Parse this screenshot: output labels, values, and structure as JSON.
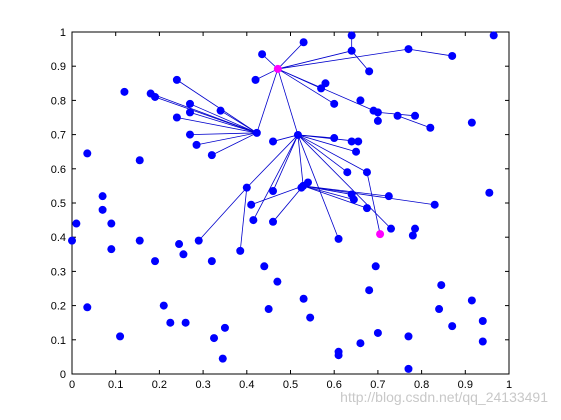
{
  "chart_data": {
    "type": "scatter",
    "xlim": [
      0,
      1
    ],
    "ylim": [
      0,
      1
    ],
    "xticks": [
      0,
      0.1,
      0.2,
      0.3,
      0.4,
      0.5,
      0.6,
      0.7,
      0.8,
      0.9,
      1
    ],
    "yticks": [
      0,
      0.1,
      0.2,
      0.3,
      0.4,
      0.5,
      0.6,
      0.7,
      0.8,
      0.9,
      1
    ],
    "edge_color": "#0000cc",
    "series": [
      {
        "color": "#0000ff",
        "x": [
          0.0,
          0.01,
          0.035,
          0.035,
          0.07,
          0.07,
          0.09,
          0.09,
          0.11,
          0.12,
          0.155,
          0.155,
          0.18,
          0.19,
          0.19,
          0.21,
          0.225,
          0.24,
          0.24,
          0.245,
          0.255,
          0.26,
          0.27,
          0.27,
          0.27,
          0.285,
          0.29,
          0.32,
          0.32,
          0.325,
          0.34,
          0.345,
          0.35,
          0.385,
          0.4,
          0.41,
          0.415,
          0.42,
          0.435,
          0.44,
          0.45,
          0.46,
          0.46,
          0.46,
          0.47,
          0.525,
          0.53,
          0.53,
          0.54,
          0.545,
          0.57,
          0.58,
          0.6,
          0.6,
          0.61,
          0.61,
          0.61,
          0.63,
          0.64,
          0.64,
          0.64,
          0.64,
          0.645,
          0.65,
          0.655,
          0.66,
          0.66,
          0.675,
          0.675,
          0.68,
          0.68,
          0.69,
          0.695,
          0.7,
          0.7,
          0.7,
          0.725,
          0.73,
          0.745,
          0.77,
          0.77,
          0.77,
          0.78,
          0.785,
          0.785,
          0.82,
          0.83,
          0.84,
          0.845,
          0.87,
          0.87,
          0.915,
          0.915,
          0.94,
          0.94,
          0.955,
          0.965,
          0.423,
          0.517,
          0.529
        ],
        "y": [
          0.39,
          0.44,
          0.645,
          0.195,
          0.52,
          0.48,
          0.44,
          0.365,
          0.11,
          0.825,
          0.625,
          0.39,
          0.82,
          0.81,
          0.33,
          0.2,
          0.15,
          0.75,
          0.86,
          0.38,
          0.35,
          0.15,
          0.765,
          0.79,
          0.7,
          0.67,
          0.39,
          0.64,
          0.33,
          0.105,
          0.77,
          0.045,
          0.135,
          0.36,
          0.545,
          0.495,
          0.45,
          0.86,
          0.935,
          0.315,
          0.19,
          0.535,
          0.68,
          0.445,
          0.27,
          0.545,
          0.97,
          0.22,
          0.56,
          0.165,
          0.835,
          0.85,
          0.69,
          0.79,
          0.395,
          0.065,
          0.055,
          0.59,
          0.525,
          0.99,
          0.945,
          0.68,
          0.51,
          0.65,
          0.68,
          0.8,
          0.09,
          0.59,
          0.485,
          0.245,
          0.885,
          0.77,
          0.315,
          0.74,
          0.765,
          0.12,
          0.52,
          0.425,
          0.755,
          0.95,
          0.11,
          0.015,
          0.405,
          0.425,
          0.755,
          0.72,
          0.495,
          0.19,
          0.26,
          0.93,
          0.14,
          0.735,
          0.215,
          0.095,
          0.155,
          0.53,
          0.99,
          0.705,
          0.699,
          0.55
        ]
      },
      {
        "color": "#ff00ff",
        "x": [
          0.471,
          0.705
        ],
        "y": [
          0.892,
          0.409
        ]
      }
    ],
    "edges": [
      [
        [
          0.471,
          0.892
        ],
        [
          0.423,
          0.705
        ]
      ],
      [
        [
          0.471,
          0.892
        ],
        [
          0.517,
          0.699
        ]
      ],
      [
        [
          0.471,
          0.892
        ],
        [
          0.435,
          0.935
        ]
      ],
      [
        [
          0.471,
          0.892
        ],
        [
          0.42,
          0.86
        ]
      ],
      [
        [
          0.471,
          0.892
        ],
        [
          0.53,
          0.97
        ]
      ],
      [
        [
          0.471,
          0.892
        ],
        [
          0.64,
          0.945
        ]
      ],
      [
        [
          0.471,
          0.892
        ],
        [
          0.77,
          0.95
        ]
      ],
      [
        [
          0.471,
          0.892
        ],
        [
          0.57,
          0.835
        ]
      ],
      [
        [
          0.471,
          0.892
        ],
        [
          0.6,
          0.79
        ]
      ],
      [
        [
          0.471,
          0.892
        ],
        [
          0.7,
          0.765
        ]
      ],
      [
        [
          0.77,
          0.95
        ],
        [
          0.87,
          0.93
        ]
      ],
      [
        [
          0.64,
          0.945
        ],
        [
          0.64,
          0.99
        ]
      ],
      [
        [
          0.64,
          0.945
        ],
        [
          0.68,
          0.885
        ]
      ],
      [
        [
          0.7,
          0.765
        ],
        [
          0.785,
          0.755
        ]
      ],
      [
        [
          0.745,
          0.755
        ],
        [
          0.82,
          0.72
        ]
      ],
      [
        [
          0.7,
          0.765
        ],
        [
          0.7,
          0.74
        ]
      ],
      [
        [
          0.423,
          0.705
        ],
        [
          0.18,
          0.82
        ]
      ],
      [
        [
          0.423,
          0.705
        ],
        [
          0.19,
          0.81
        ]
      ],
      [
        [
          0.423,
          0.705
        ],
        [
          0.24,
          0.86
        ]
      ],
      [
        [
          0.423,
          0.705
        ],
        [
          0.24,
          0.75
        ]
      ],
      [
        [
          0.423,
          0.705
        ],
        [
          0.27,
          0.79
        ]
      ],
      [
        [
          0.423,
          0.705
        ],
        [
          0.27,
          0.765
        ]
      ],
      [
        [
          0.423,
          0.705
        ],
        [
          0.27,
          0.7
        ]
      ],
      [
        [
          0.423,
          0.705
        ],
        [
          0.285,
          0.67
        ]
      ],
      [
        [
          0.423,
          0.705
        ],
        [
          0.32,
          0.64
        ]
      ],
      [
        [
          0.423,
          0.705
        ],
        [
          0.34,
          0.77
        ]
      ],
      [
        [
          0.517,
          0.699
        ],
        [
          0.46,
          0.68
        ]
      ],
      [
        [
          0.517,
          0.699
        ],
        [
          0.6,
          0.69
        ]
      ],
      [
        [
          0.517,
          0.699
        ],
        [
          0.655,
          0.68
        ]
      ],
      [
        [
          0.517,
          0.699
        ],
        [
          0.65,
          0.65
        ]
      ],
      [
        [
          0.517,
          0.699
        ],
        [
          0.63,
          0.59
        ]
      ],
      [
        [
          0.517,
          0.699
        ],
        [
          0.675,
          0.59
        ]
      ],
      [
        [
          0.517,
          0.699
        ],
        [
          0.61,
          0.395
        ]
      ],
      [
        [
          0.517,
          0.699
        ],
        [
          0.73,
          0.425
        ]
      ],
      [
        [
          0.517,
          0.699
        ],
        [
          0.529,
          0.55
        ]
      ],
      [
        [
          0.517,
          0.699
        ],
        [
          0.46,
          0.535
        ]
      ],
      [
        [
          0.517,
          0.699
        ],
        [
          0.4,
          0.545
        ]
      ],
      [
        [
          0.4,
          0.545
        ],
        [
          0.29,
          0.39
        ]
      ],
      [
        [
          0.517,
          0.699
        ],
        [
          0.415,
          0.45
        ]
      ],
      [
        [
          0.675,
          0.59
        ],
        [
          0.705,
          0.409
        ]
      ],
      [
        [
          0.4,
          0.545
        ],
        [
          0.385,
          0.36
        ]
      ],
      [
        [
          0.529,
          0.55
        ],
        [
          0.41,
          0.495
        ]
      ],
      [
        [
          0.529,
          0.55
        ],
        [
          0.46,
          0.445
        ]
      ],
      [
        [
          0.529,
          0.55
        ],
        [
          0.64,
          0.525
        ]
      ],
      [
        [
          0.529,
          0.55
        ],
        [
          0.645,
          0.51
        ]
      ],
      [
        [
          0.529,
          0.55
        ],
        [
          0.675,
          0.485
        ]
      ],
      [
        [
          0.529,
          0.55
        ],
        [
          0.725,
          0.52
        ]
      ],
      [
        [
          0.529,
          0.55
        ],
        [
          0.83,
          0.495
        ]
      ],
      [
        [
          0.529,
          0.55
        ],
        [
          0.54,
          0.56
        ]
      ]
    ],
    "watermark": "http://blog.csdn.net/qq_24133491"
  }
}
